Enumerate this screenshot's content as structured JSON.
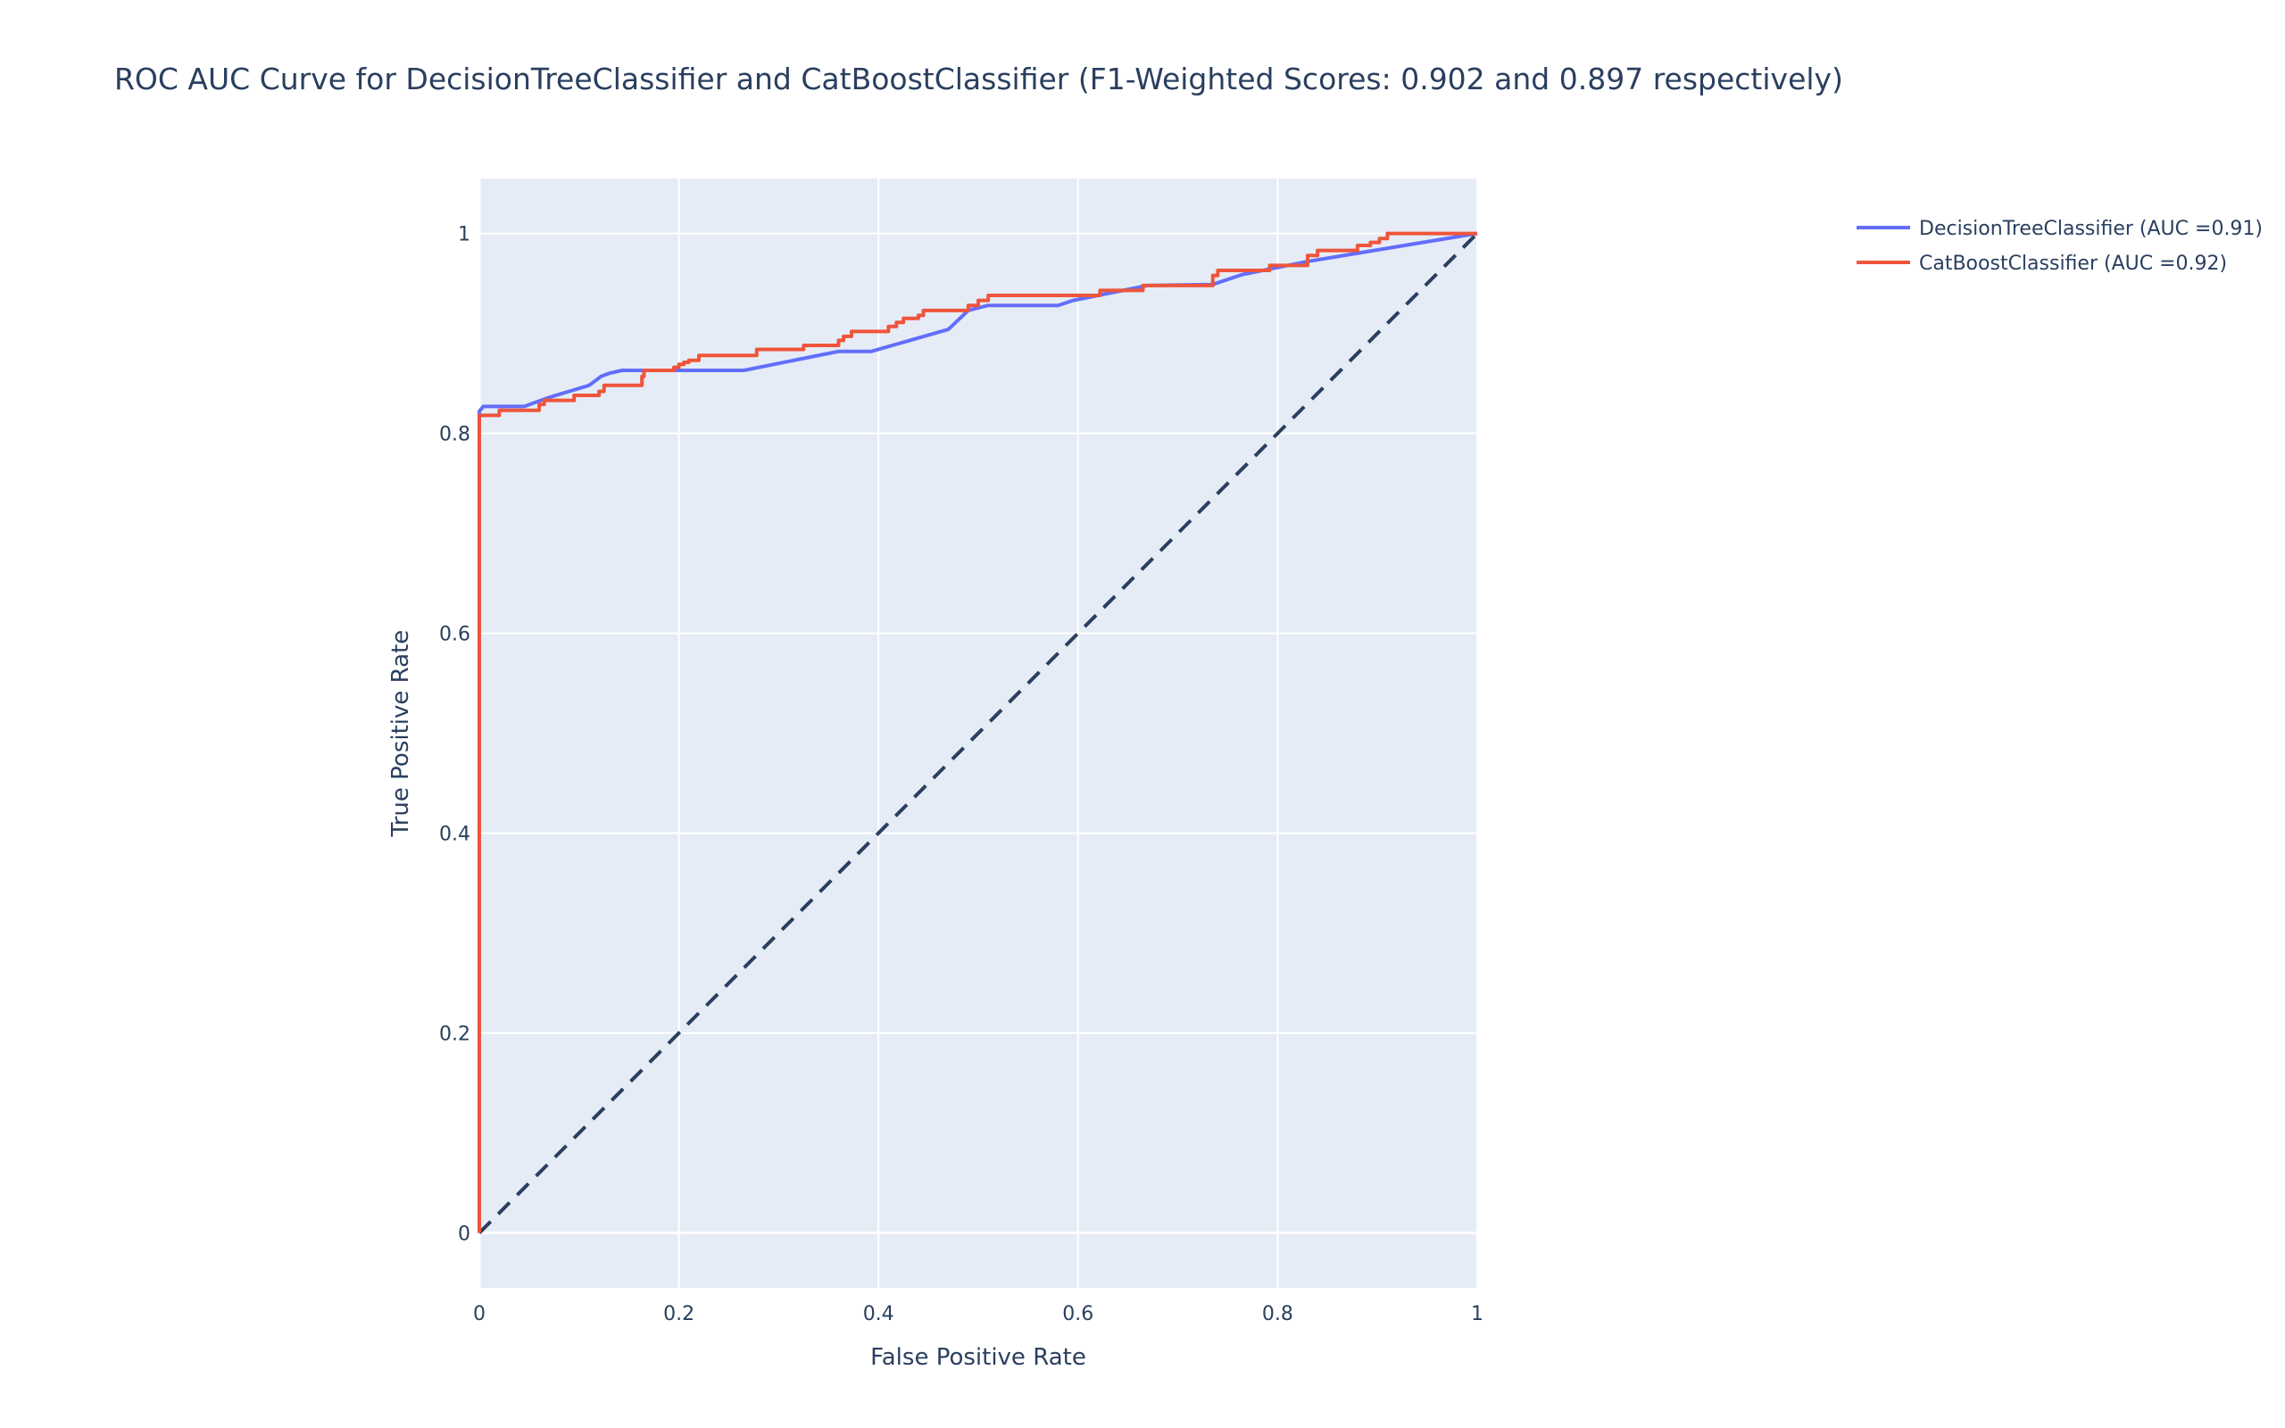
{
  "chart_data": {
    "type": "line",
    "title": "ROC AUC Curve for DecisionTreeClassifier and CatBoostClassifier (F1-Weighted Scores: 0.902 and 0.897 respectively)",
    "xlabel": "False Positive Rate",
    "ylabel": "True Positive Rate",
    "xlim": [
      0,
      1
    ],
    "ylim": [
      -0.055,
      1.055
    ],
    "x_ticks": [
      "0",
      "0.2",
      "0.4",
      "0.6",
      "0.8",
      "1"
    ],
    "y_ticks": [
      "0",
      "0.2",
      "0.4",
      "0.6",
      "0.8",
      "1"
    ],
    "grid": true,
    "legend_position": "top-right",
    "plot_background": "#e5ecf6",
    "series": [
      {
        "name": "DecisionTreeClassifier (AUC =0.91)",
        "color": "#636efa",
        "line_shape": "linear",
        "x": [
          0,
          0,
          0.004,
          0.045,
          0.07,
          0.11,
          0.122,
          0.13,
          0.143,
          0.265,
          0.36,
          0.393,
          0.47,
          0.49,
          0.51,
          0.58,
          0.595,
          0.67,
          0.735,
          0.765,
          0.83,
          1
        ],
        "y": [
          0,
          0.822,
          0.827,
          0.827,
          0.836,
          0.848,
          0.857,
          0.86,
          0.863,
          0.863,
          0.882,
          0.882,
          0.904,
          0.923,
          0.928,
          0.928,
          0.933,
          0.948,
          0.949,
          0.959,
          0.972,
          1
        ]
      },
      {
        "name": "CatBoostClassifier (AUC =0.92)",
        "color": "#ef553b",
        "line_shape": "step",
        "x": [
          0,
          0,
          0.02,
          0.06,
          0.065,
          0.095,
          0.12,
          0.125,
          0.163,
          0.165,
          0.195,
          0.2,
          0.205,
          0.21,
          0.22,
          0.278,
          0.325,
          0.36,
          0.365,
          0.373,
          0.41,
          0.418,
          0.425,
          0.44,
          0.445,
          0.49,
          0.5,
          0.51,
          0.583,
          0.622,
          0.665,
          0.735,
          0.74,
          0.792,
          0.83,
          0.84,
          0.88,
          0.893,
          0.902,
          0.91,
          1
        ],
        "y": [
          0,
          0.818,
          0.823,
          0.829,
          0.833,
          0.838,
          0.842,
          0.848,
          0.857,
          0.863,
          0.866,
          0.869,
          0.871,
          0.873,
          0.878,
          0.884,
          0.888,
          0.893,
          0.897,
          0.902,
          0.907,
          0.911,
          0.915,
          0.918,
          0.923,
          0.928,
          0.933,
          0.938,
          0.938,
          0.943,
          0.948,
          0.958,
          0.963,
          0.968,
          0.978,
          0.983,
          0.988,
          0.991,
          0.995,
          1,
          1
        ]
      },
      {
        "name": "",
        "color": "#2a3f5f",
        "dash": "dash",
        "line_shape": "linear",
        "x": [
          0,
          1
        ],
        "y": [
          0,
          1
        ]
      }
    ]
  }
}
